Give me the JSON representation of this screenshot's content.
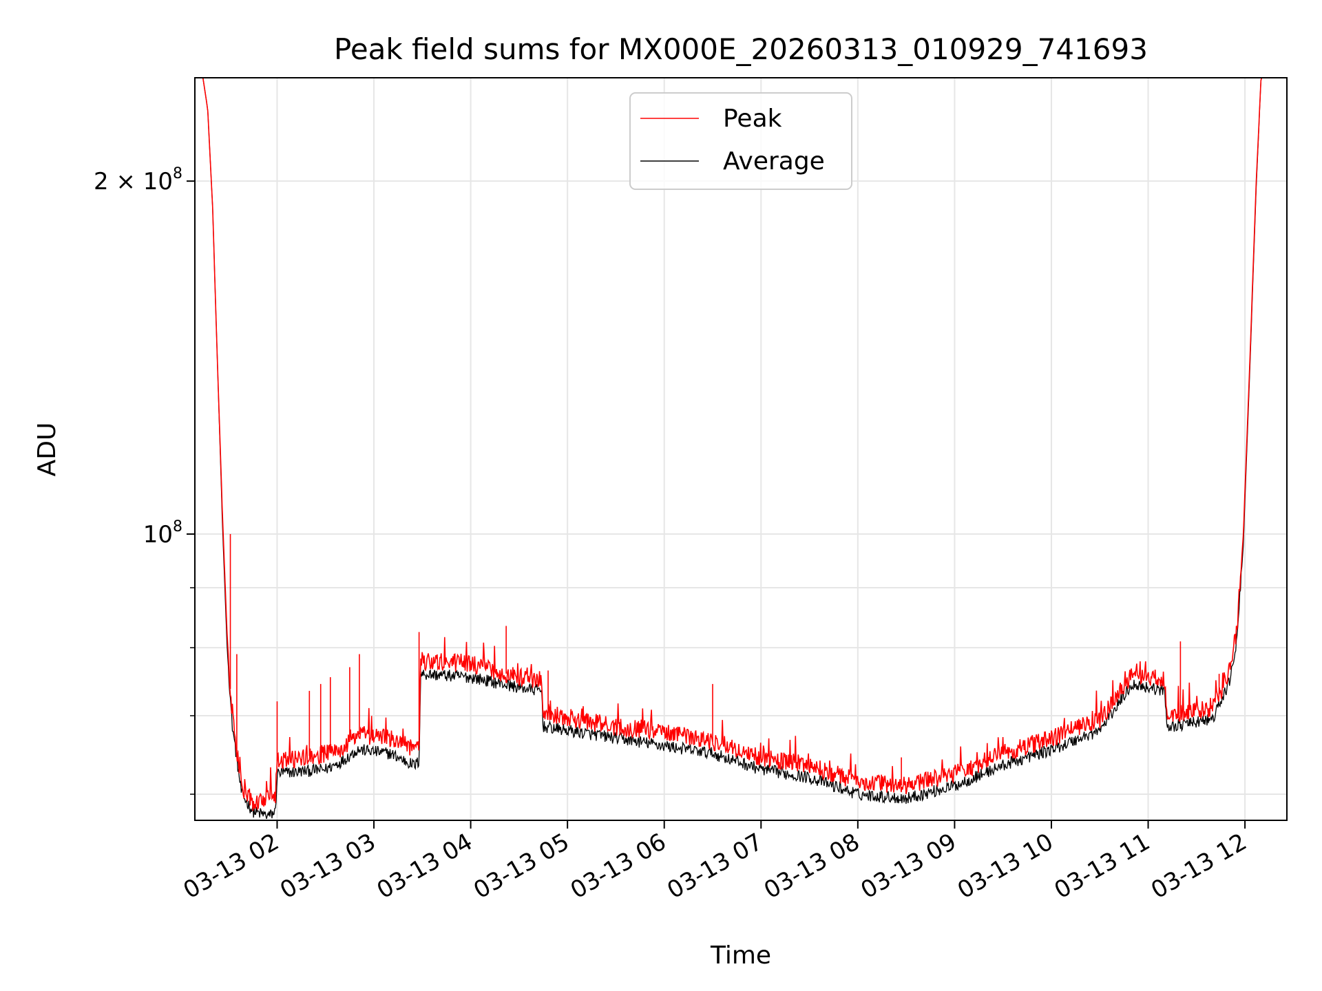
{
  "chart_data": {
    "type": "line",
    "title": "Peak field sums for MX000E_20260313_010929_741693",
    "xlabel": "Time",
    "ylabel": "ADU",
    "yscale": "log",
    "xlim": [
      "2026-03-13 01:09",
      "2026-03-13 12:26"
    ],
    "ylim": [
      57000000.0,
      245000000.0
    ],
    "x_ticks": [
      "03-13 02",
      "03-13 03",
      "03-13 04",
      "03-13 05",
      "03-13 06",
      "03-13 07",
      "03-13 08",
      "03-13 09",
      "03-13 10",
      "03-13 11",
      "03-13 12"
    ],
    "y_ticks": [
      {
        "label_base": "2 × 10",
        "label_exp": "8",
        "value": 200000000.0
      },
      {
        "label_base": "10",
        "label_exp": "8",
        "value": 100000000.0
      }
    ],
    "y_minor_ticks": [
      60000000.0,
      70000000.0,
      80000000.0,
      90000000.0
    ],
    "grid": true,
    "legend_position": "upper-center",
    "series": [
      {
        "name": "Peak",
        "color": "#ff0000",
        "points": [
          [
            "2026-03-13 01:09",
            245000000.0
          ],
          [
            "2026-03-13 01:14",
            245000000.0
          ],
          [
            "2026-03-13 01:17",
            230000000.0
          ],
          [
            "2026-03-13 01:20",
            190000000.0
          ],
          [
            "2026-03-13 01:23",
            140000000.0
          ],
          [
            "2026-03-13 01:26",
            105000000.0
          ],
          [
            "2026-03-13 01:29",
            82000000.0
          ],
          [
            "2026-03-13 01:32",
            70000000.0
          ],
          [
            "2026-03-13 01:38",
            61000000.0
          ],
          [
            "2026-03-13 01:45",
            59000000.0
          ],
          [
            "2026-03-13 01:55",
            59500000.0
          ],
          [
            "2026-03-13 01:59",
            60000000.0
          ],
          [
            "2026-03-13 02:00",
            64000000.0
          ],
          [
            "2026-03-13 02:30",
            65000000.0
          ],
          [
            "2026-03-13 02:40",
            65500000.0
          ],
          [
            "2026-03-13 02:50",
            67500000.0
          ],
          [
            "2026-03-13 03:10",
            67000000.0
          ],
          [
            "2026-03-13 03:25",
            65500000.0
          ],
          [
            "2026-03-13 03:28",
            66000000.0
          ],
          [
            "2026-03-13 03:29",
            78000000.0
          ],
          [
            "2026-03-13 04:00",
            77500000.0
          ],
          [
            "2026-03-13 04:30",
            75500000.0
          ],
          [
            "2026-03-13 04:44",
            75000000.0
          ],
          [
            "2026-03-13 04:45",
            70500000.0
          ],
          [
            "2026-03-13 05:30",
            68500000.0
          ],
          [
            "2026-03-13 06:00",
            68000000.0
          ],
          [
            "2026-03-13 06:30",
            66500000.0
          ],
          [
            "2026-03-13 07:00",
            64500000.0
          ],
          [
            "2026-03-13 07:30",
            63500000.0
          ],
          [
            "2026-03-13 08:00",
            61500000.0
          ],
          [
            "2026-03-13 08:30",
            61000000.0
          ],
          [
            "2026-03-13 09:00",
            62500000.0
          ],
          [
            "2026-03-13 09:30",
            65000000.0
          ],
          [
            "2026-03-13 10:00",
            67000000.0
          ],
          [
            "2026-03-13 10:30",
            69500000.0
          ],
          [
            "2026-03-13 10:50",
            76000000.0
          ],
          [
            "2026-03-13 11:10",
            75000000.0
          ],
          [
            "2026-03-13 11:12",
            70000000.0
          ],
          [
            "2026-03-13 11:40",
            71000000.0
          ],
          [
            "2026-03-13 11:50",
            76000000.0
          ],
          [
            "2026-03-13 11:55",
            83000000.0
          ],
          [
            "2026-03-13 11:59",
            100000000.0
          ],
          [
            "2026-03-13 12:03",
            140000000.0
          ],
          [
            "2026-03-13 12:07",
            200000000.0
          ],
          [
            "2026-03-13 12:10",
            245000000.0
          ],
          [
            "2026-03-13 12:26",
            245000000.0
          ]
        ],
        "spikes": [
          [
            "2026-03-13 01:31",
            100000000.0
          ],
          [
            "2026-03-13 01:35",
            79000000.0
          ],
          [
            "2026-03-13 02:00",
            72000000.0
          ],
          [
            "2026-03-13 02:20",
            73500000.0
          ],
          [
            "2026-03-13 02:27",
            74500000.0
          ],
          [
            "2026-03-13 02:33",
            75500000.0
          ],
          [
            "2026-03-13 02:45",
            77000000.0
          ],
          [
            "2026-03-13 02:51",
            79000000.0
          ],
          [
            "2026-03-13 03:28",
            82500000.0
          ],
          [
            "2026-03-13 04:22",
            83500000.0
          ],
          [
            "2026-03-13 04:48",
            76500000.0
          ],
          [
            "2026-03-13 06:30",
            74500000.0
          ],
          [
            "2026-03-13 08:27",
            64500000.0
          ],
          [
            "2026-03-13 11:20",
            81000000.0
          ],
          [
            "2026-03-13 11:44",
            76000000.0
          ]
        ]
      },
      {
        "name": "Average",
        "color": "#000000",
        "points": [
          [
            "2026-03-13 01:09",
            245000000.0
          ],
          [
            "2026-03-13 01:14",
            245000000.0
          ],
          [
            "2026-03-13 01:17",
            230000000.0
          ],
          [
            "2026-03-13 01:20",
            190000000.0
          ],
          [
            "2026-03-13 01:23",
            140000000.0
          ],
          [
            "2026-03-13 01:26",
            103000000.0
          ],
          [
            "2026-03-13 01:29",
            80000000.0
          ],
          [
            "2026-03-13 01:32",
            69000000.0
          ],
          [
            "2026-03-13 01:38",
            60000000.0
          ],
          [
            "2026-03-13 01:45",
            58000000.0
          ],
          [
            "2026-03-13 01:55",
            57500000.0
          ],
          [
            "2026-03-13 01:59",
            58000000.0
          ],
          [
            "2026-03-13 02:00",
            62500000.0
          ],
          [
            "2026-03-13 02:30",
            63000000.0
          ],
          [
            "2026-03-13 02:40",
            64000000.0
          ],
          [
            "2026-03-13 02:50",
            65500000.0
          ],
          [
            "2026-03-13 03:10",
            65000000.0
          ],
          [
            "2026-03-13 03:25",
            63500000.0
          ],
          [
            "2026-03-13 03:28",
            64000000.0
          ],
          [
            "2026-03-13 03:29",
            76000000.0
          ],
          [
            "2026-03-13 04:00",
            75500000.0
          ],
          [
            "2026-03-13 04:30",
            74000000.0
          ],
          [
            "2026-03-13 04:44",
            73500000.0
          ],
          [
            "2026-03-13 04:45",
            68500000.0
          ],
          [
            "2026-03-13 05:30",
            67000000.0
          ],
          [
            "2026-03-13 06:00",
            66000000.0
          ],
          [
            "2026-03-13 06:30",
            65000000.0
          ],
          [
            "2026-03-13 07:00",
            63000000.0
          ],
          [
            "2026-03-13 07:30",
            62000000.0
          ],
          [
            "2026-03-13 08:00",
            60000000.0
          ],
          [
            "2026-03-13 08:30",
            59500000.0
          ],
          [
            "2026-03-13 09:00",
            61000000.0
          ],
          [
            "2026-03-13 09:30",
            63500000.0
          ],
          [
            "2026-03-13 10:00",
            65500000.0
          ],
          [
            "2026-03-13 10:30",
            68000000.0
          ],
          [
            "2026-03-13 10:50",
            74500000.0
          ],
          [
            "2026-03-13 11:10",
            73500000.0
          ],
          [
            "2026-03-13 11:12",
            68500000.0
          ],
          [
            "2026-03-13 11:40",
            69500000.0
          ],
          [
            "2026-03-13 11:50",
            74500000.0
          ],
          [
            "2026-03-13 11:55",
            81000000.0
          ],
          [
            "2026-03-13 11:59",
            98000000.0
          ],
          [
            "2026-03-13 12:03",
            138000000.0
          ],
          [
            "2026-03-13 12:07",
            198000000.0
          ],
          [
            "2026-03-13 12:10",
            245000000.0
          ],
          [
            "2026-03-13 12:26",
            245000000.0
          ]
        ],
        "spikes": []
      }
    ]
  }
}
